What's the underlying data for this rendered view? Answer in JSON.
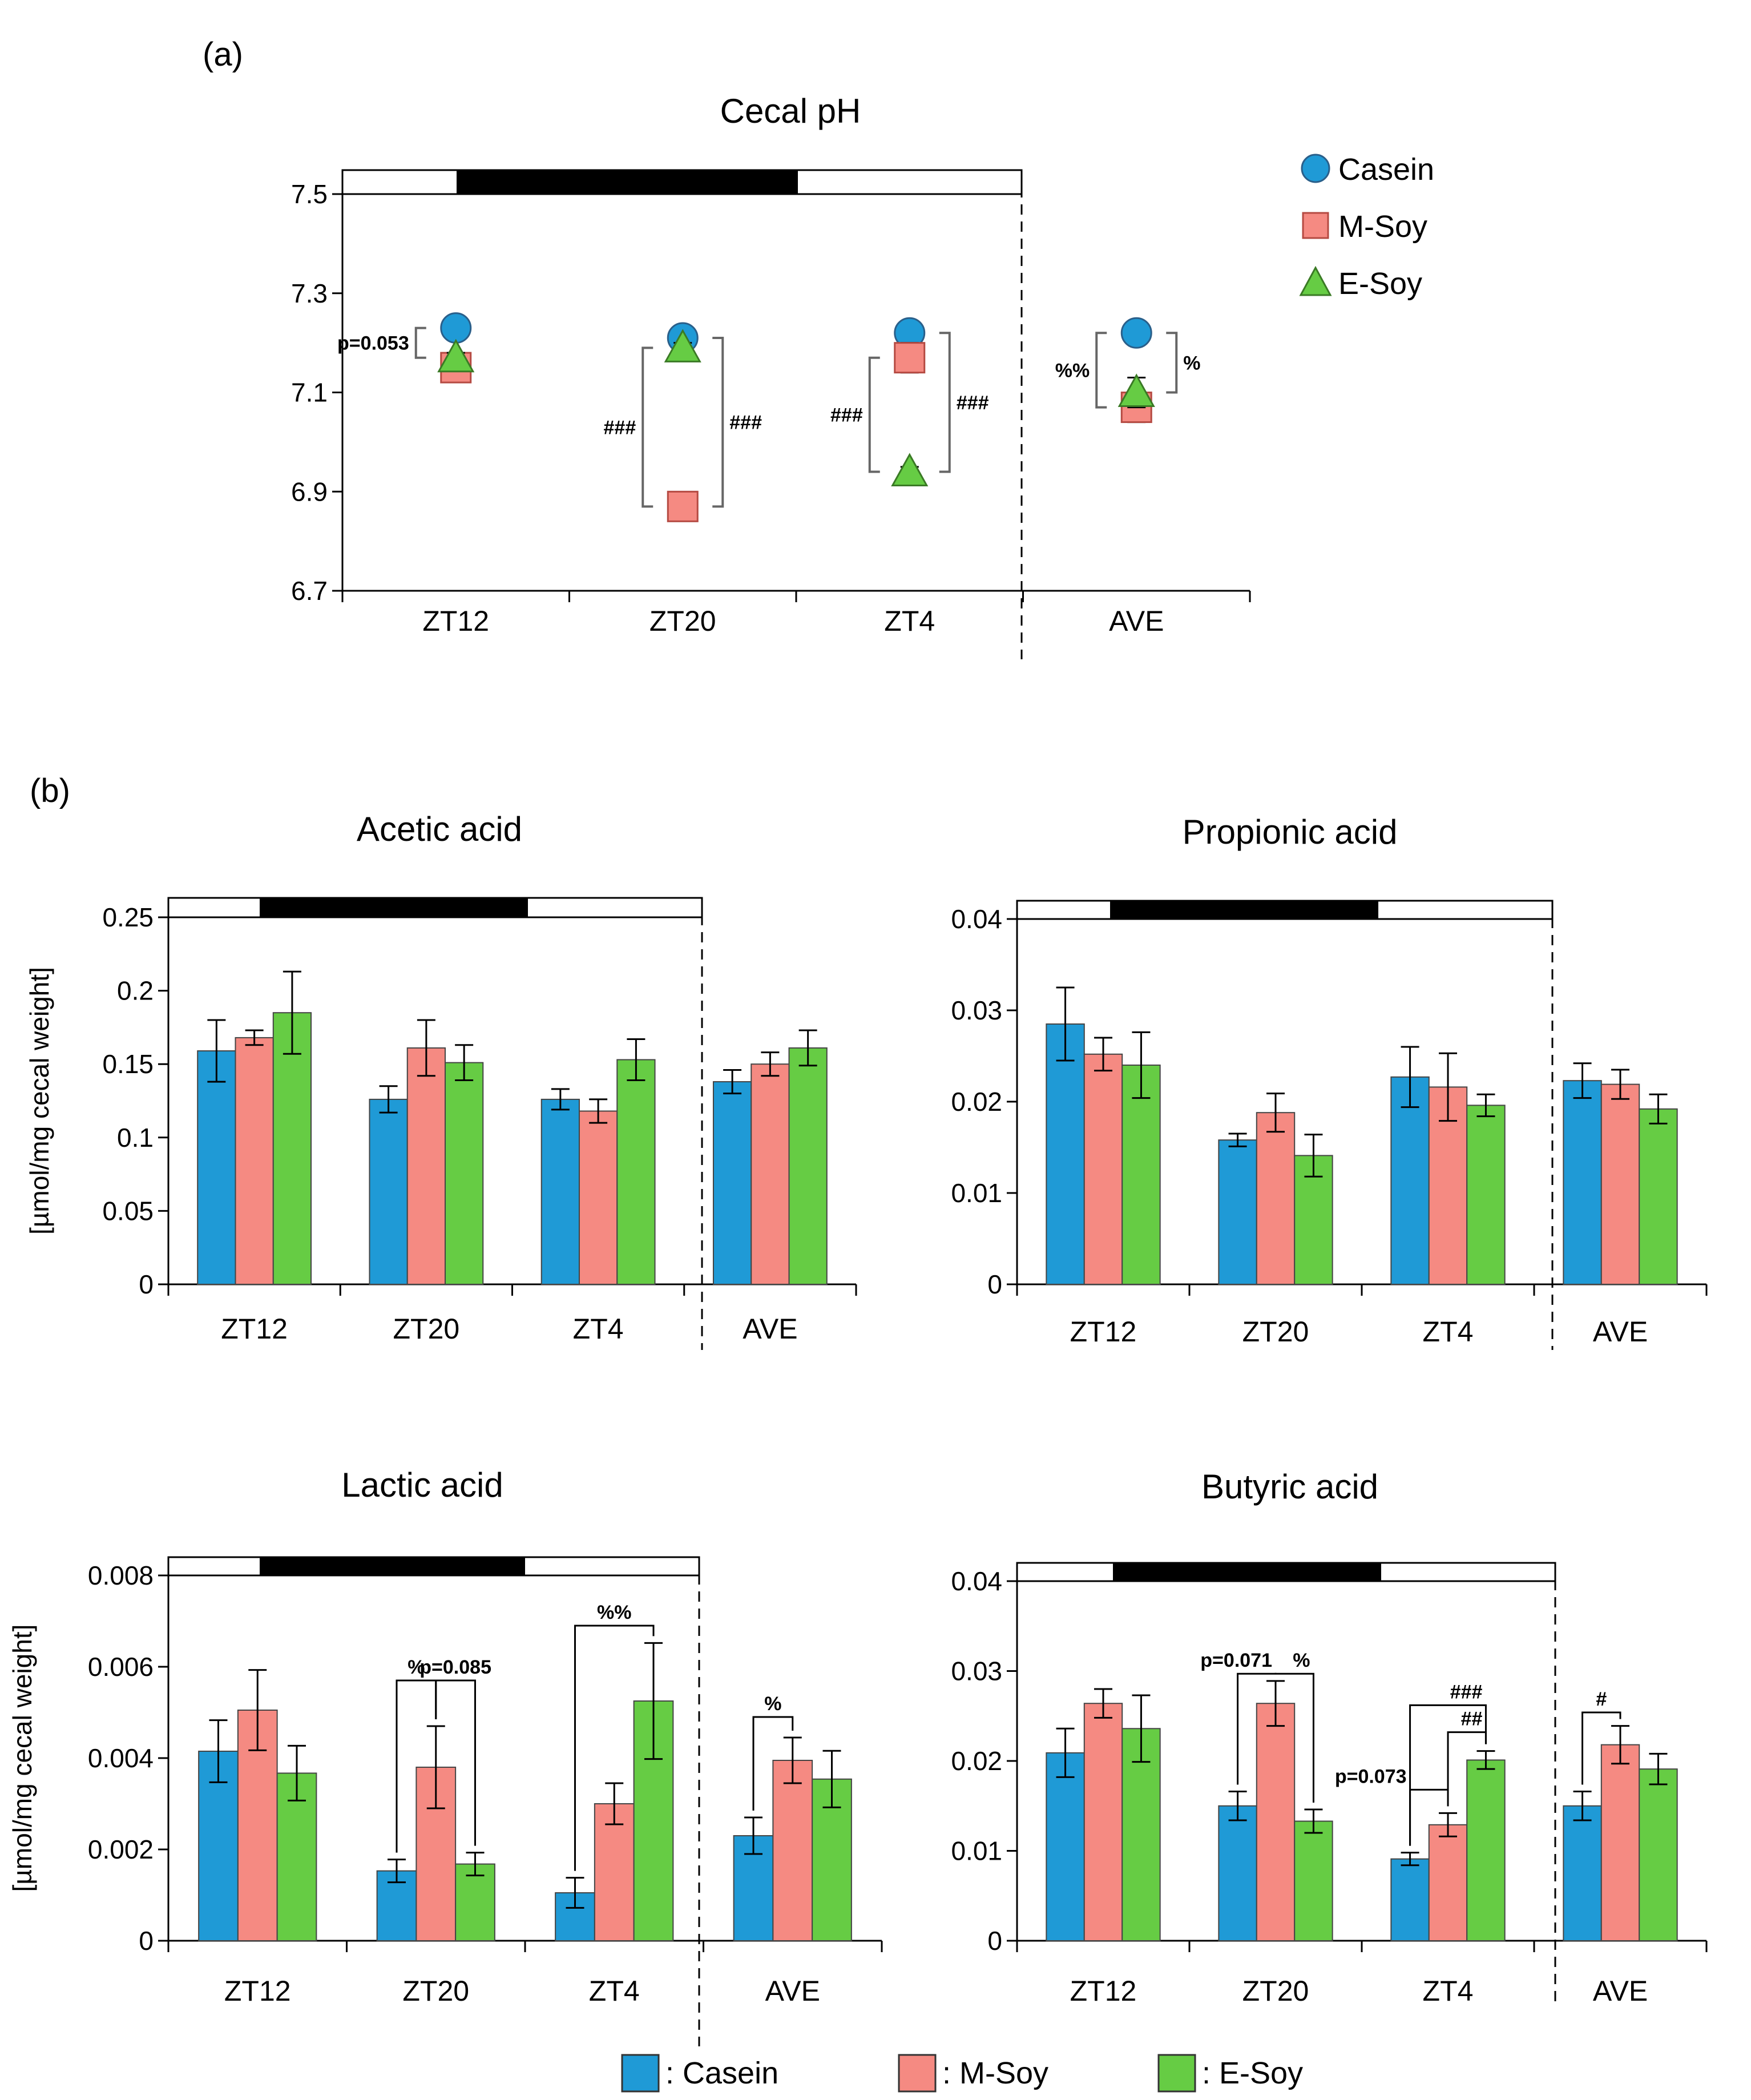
{
  "figure": {
    "panel_a_label": "(a)",
    "panel_b_label": "(b)",
    "colors": {
      "casein": "#1f9ad6",
      "msoy": "#f58a82",
      "esoy": "#66cc44",
      "bar_edge": "#444444"
    }
  },
  "chart_data": [
    {
      "id": "ph",
      "type": "scatter",
      "title": "Cecal pH",
      "categories": [
        "ZT12",
        "ZT20",
        "ZT4",
        "AVE"
      ],
      "ylim": [
        6.7,
        7.5
      ],
      "yticks": [
        "6.7",
        "6.9",
        "7.1",
        "7.3",
        "7.5"
      ],
      "ylabel": "",
      "series": [
        {
          "name": "Casein",
          "marker": "circle",
          "values": [
            7.23,
            7.21,
            7.22,
            7.22
          ],
          "errors": [
            0.01,
            0.01,
            0.01,
            0.01
          ]
        },
        {
          "name": "M-Soy",
          "marker": "square",
          "values": [
            7.15,
            6.87,
            7.17,
            7.07
          ],
          "errors": [
            0.01,
            0.01,
            0.03,
            0.03
          ]
        },
        {
          "name": "E-Soy",
          "marker": "triangle",
          "values": [
            7.17,
            7.19,
            6.94,
            7.1
          ],
          "errors": [
            0.01,
            0.01,
            0.01,
            0.03
          ]
        }
      ],
      "legend": [
        {
          "name": "Casein",
          "marker": "circle"
        },
        {
          "name": "M-Soy",
          "marker": "square"
        },
        {
          "name": "E-Soy",
          "marker": "triangle"
        }
      ],
      "annotations": [
        {
          "text": "p=0.053",
          "cat": 0,
          "from": "Casein",
          "to": "E-Soy",
          "side": "left"
        },
        {
          "text": "###",
          "cat": 1,
          "from": "E-Soy",
          "to": "M-Soy",
          "side": "left"
        },
        {
          "text": "###",
          "cat": 1,
          "from": "Casein",
          "to": "M-Soy",
          "side": "right"
        },
        {
          "text": "###",
          "cat": 2,
          "from": "M-Soy",
          "to": "E-Soy",
          "side": "left"
        },
        {
          "text": "###",
          "cat": 2,
          "from": "Casein",
          "to": "E-Soy",
          "side": "right"
        },
        {
          "text": "%%",
          "cat": 3,
          "from": "Casein",
          "to": "M-Soy",
          "side": "left"
        },
        {
          "text": "%",
          "cat": 3,
          "from": "Casein",
          "to": "E-Soy",
          "side": "right"
        }
      ]
    },
    {
      "id": "acetic",
      "type": "bar",
      "title": "Acetic acid",
      "categories": [
        "ZT12",
        "ZT20",
        "ZT4",
        "AVE"
      ],
      "ylim": [
        0,
        0.25
      ],
      "yticks": [
        "0",
        "0.05",
        "0.1",
        "0.15",
        "0.2",
        "0.25"
      ],
      "ylabel": "[µmol/mg cecal weight]",
      "series": [
        {
          "name": "Casein",
          "values": [
            0.159,
            0.126,
            0.126,
            0.138
          ],
          "errors": [
            0.021,
            0.009,
            0.007,
            0.008
          ]
        },
        {
          "name": "M-Soy",
          "values": [
            0.168,
            0.161,
            0.118,
            0.15
          ],
          "errors": [
            0.005,
            0.019,
            0.008,
            0.008
          ]
        },
        {
          "name": "E-Soy",
          "values": [
            0.185,
            0.151,
            0.153,
            0.161
          ],
          "errors": [
            0.028,
            0.012,
            0.014,
            0.012
          ]
        }
      ],
      "annotations": []
    },
    {
      "id": "propionic",
      "type": "bar",
      "title": "Propionic acid",
      "categories": [
        "ZT12",
        "ZT20",
        "ZT4",
        "AVE"
      ],
      "ylim": [
        0,
        0.04
      ],
      "yticks": [
        "0",
        "0.01",
        "0.02",
        "0.03",
        "0.04"
      ],
      "ylabel": "",
      "series": [
        {
          "name": "Casein",
          "values": [
            0.0285,
            0.0158,
            0.0227,
            0.0223
          ],
          "errors": [
            0.004,
            0.0007,
            0.0033,
            0.0019
          ]
        },
        {
          "name": "M-Soy",
          "values": [
            0.0252,
            0.0188,
            0.0216,
            0.0219
          ],
          "errors": [
            0.0018,
            0.0021,
            0.0037,
            0.0016
          ]
        },
        {
          "name": "E-Soy",
          "values": [
            0.024,
            0.0141,
            0.0196,
            0.0192
          ],
          "errors": [
            0.0036,
            0.0023,
            0.0012,
            0.0016
          ]
        }
      ],
      "annotations": []
    },
    {
      "id": "lactic",
      "type": "bar",
      "title": "Lactic acid",
      "categories": [
        "ZT12",
        "ZT20",
        "ZT4",
        "AVE"
      ],
      "ylim": [
        0,
        0.008
      ],
      "yticks": [
        "0",
        "0.002",
        "0.004",
        "0.006",
        "0.008"
      ],
      "ylabel": "[µmol/mg cecal weight]",
      "series": [
        {
          "name": "Casein",
          "values": [
            0.00415,
            0.00153,
            0.00105,
            0.0023
          ],
          "errors": [
            0.00068,
            0.00025,
            0.00033,
            0.0004
          ]
        },
        {
          "name": "M-Soy",
          "values": [
            0.00505,
            0.0038,
            0.003,
            0.00395
          ],
          "errors": [
            0.00088,
            0.0009,
            0.00045,
            0.0005
          ]
        },
        {
          "name": "E-Soy",
          "values": [
            0.00367,
            0.00168,
            0.00525,
            0.00354
          ],
          "errors": [
            0.0006,
            0.00025,
            0.00127,
            0.00062
          ]
        }
      ],
      "annotations": [
        {
          "text": "%",
          "cat": 1,
          "a": 0,
          "b": 1,
          "level": 0.0057,
          "anchor": "center"
        },
        {
          "text": "p=0.085",
          "cat": 1,
          "a": 1,
          "b": 2,
          "level": 0.0057,
          "anchor": "center"
        },
        {
          "text": "%%",
          "cat": 2,
          "a": 0,
          "b": 2,
          "level": 0.0069,
          "anchor": "center"
        },
        {
          "text": "%",
          "cat": 3,
          "a": 0,
          "b": 1,
          "level": 0.0049,
          "anchor": "center"
        }
      ]
    },
    {
      "id": "butyric",
      "type": "bar",
      "title": "Butyric acid",
      "categories": [
        "ZT12",
        "ZT20",
        "ZT4",
        "AVE"
      ],
      "ylim": [
        0,
        0.04
      ],
      "yticks": [
        "0",
        "0.01",
        "0.02",
        "0.03",
        "0.04"
      ],
      "ylabel": "",
      "series": [
        {
          "name": "Casein",
          "values": [
            0.0209,
            0.015,
            0.0091,
            0.015
          ],
          "errors": [
            0.0027,
            0.0016,
            0.0007,
            0.0016
          ]
        },
        {
          "name": "M-Soy",
          "values": [
            0.0264,
            0.0264,
            0.0129,
            0.0218
          ],
          "errors": [
            0.0016,
            0.0025,
            0.0013,
            0.0021
          ]
        },
        {
          "name": "E-Soy",
          "values": [
            0.0236,
            0.0133,
            0.0201,
            0.0191
          ],
          "errors": [
            0.0037,
            0.0013,
            0.001,
            0.0017
          ]
        }
      ],
      "annotations": [
        {
          "text": "p=0.071",
          "cat": 1,
          "a": 0,
          "b": 1,
          "level": 0.0297,
          "anchor": "end"
        },
        {
          "text": "%",
          "cat": 1,
          "a": 1,
          "b": 2,
          "level": 0.0297,
          "anchor": "end"
        },
        {
          "text": "###",
          "cat": 2,
          "a": 0,
          "b": 2,
          "level": 0.0262,
          "anchor": "end"
        },
        {
          "text": "##",
          "cat": 2,
          "a": 1,
          "b": 2,
          "level": 0.0232,
          "anchor": "end"
        },
        {
          "text": "p=0.073",
          "cat": 2,
          "a": 0,
          "b": 1,
          "level": 0.0168,
          "anchor": "start-left"
        },
        {
          "text": "#",
          "cat": 3,
          "a": 0,
          "b": 1,
          "level": 0.0254,
          "anchor": "center"
        }
      ]
    }
  ],
  "legend_bottom": [
    {
      "label": ": Casein"
    },
    {
      "label": ": M-Soy"
    },
    {
      "label": ": E-Soy"
    }
  ]
}
